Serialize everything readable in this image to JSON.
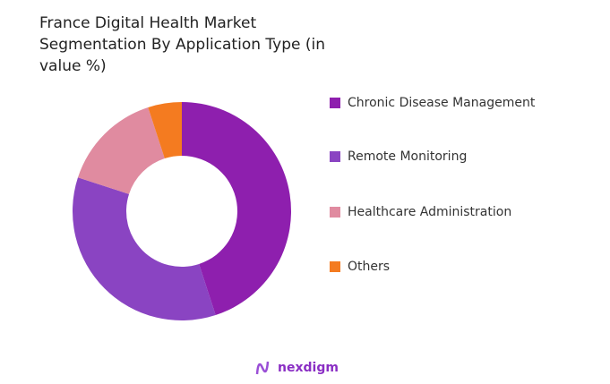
{
  "chart_data": {
    "type": "pie",
    "variant": "donut",
    "title": "France Digital Health Market Segmentation By Application Type (in value %)",
    "categories": [
      "Chronic Disease Management",
      "Remote Monitoring",
      "Healthcare Administration",
      "Others"
    ],
    "values": [
      45,
      35,
      15,
      5
    ],
    "colors": [
      "#8e1fae",
      "#8a44c2",
      "#e08ba0",
      "#f47b20"
    ],
    "legend_position": "right"
  },
  "brand": {
    "name": "nexdigm"
  }
}
